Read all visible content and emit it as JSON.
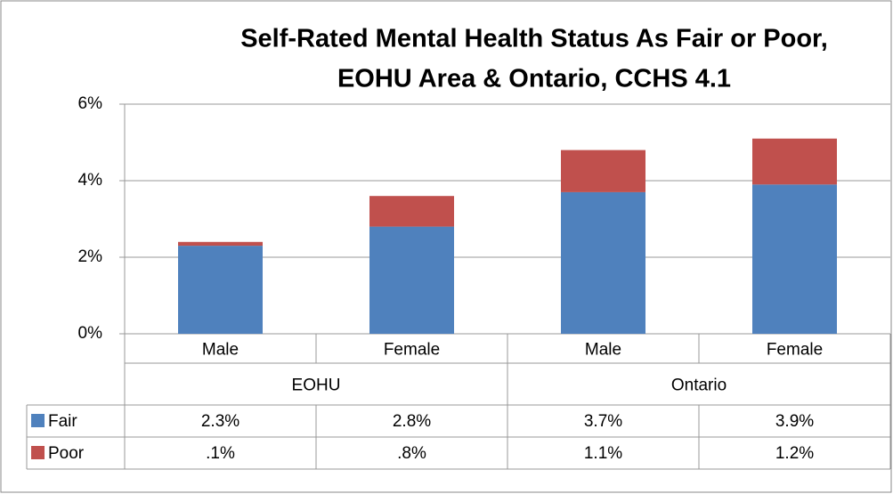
{
  "chart_data": {
    "type": "stacked_bar",
    "title": [
      "Self-Rated Mental Health Status  As Fair or Poor,",
      "EOHU Area & Ontario, CCHS 4.1"
    ],
    "categories": [
      "Male",
      "Female",
      "Male",
      "Female"
    ],
    "groups": [
      "EOHU",
      "Ontario"
    ],
    "series": [
      {
        "name": "Fair",
        "color": "#4f81bd",
        "values": [
          2.3,
          2.8,
          3.7,
          3.9
        ],
        "value_labels": [
          "2.3%",
          "2.8%",
          "3.7%",
          "3.9%"
        ]
      },
      {
        "name": "Poor",
        "color": "#c0504d",
        "values": [
          0.1,
          0.8,
          1.1,
          1.2
        ],
        "value_labels": [
          ".1%",
          ".8%",
          "1.1%",
          "1.2%"
        ]
      }
    ],
    "ylim": [
      0,
      6
    ],
    "yticks": [
      {
        "value": 0,
        "label": "0%"
      },
      {
        "value": 2,
        "label": "2%"
      },
      {
        "value": 4,
        "label": "4%"
      },
      {
        "value": 6,
        "label": "6%"
      }
    ],
    "grid": true
  }
}
